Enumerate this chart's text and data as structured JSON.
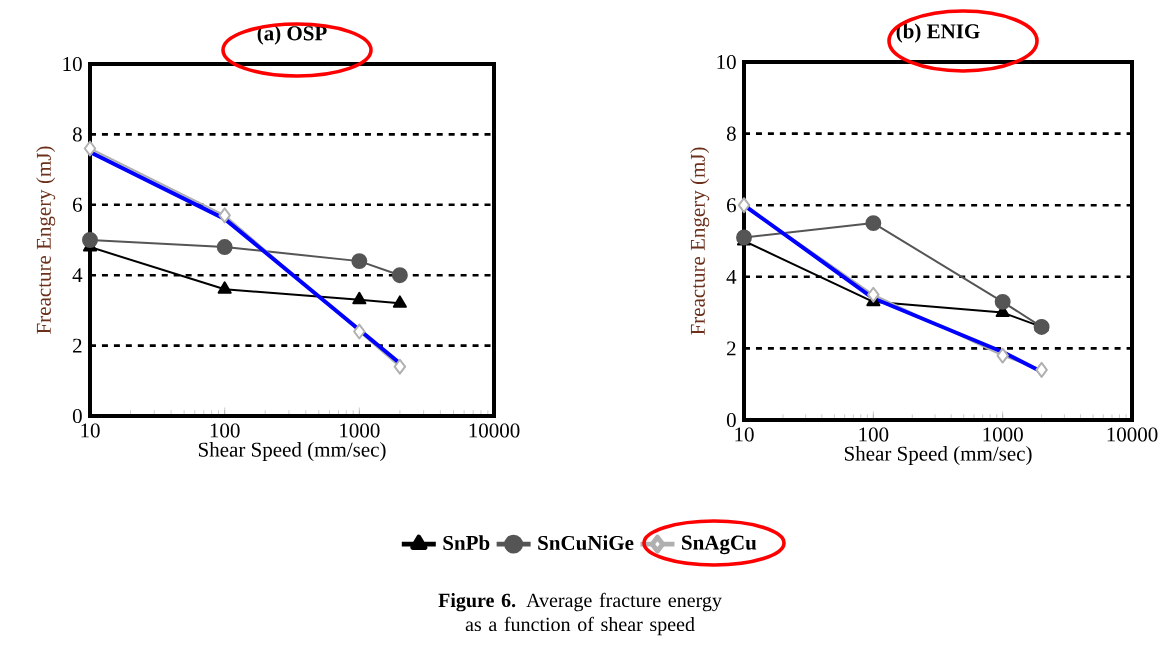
{
  "chart_data": [
    {
      "type": "line",
      "title": "(a) OSP",
      "xlabel": "Shear Speed (mm/sec)",
      "ylabel": "Freacture Engery (mJ)",
      "log": "x",
      "xlim": [
        10,
        10000
      ],
      "xticks": [
        10,
        100,
        1000,
        10000
      ],
      "ylim": [
        0,
        10
      ],
      "yticks": [
        0,
        2,
        4,
        6,
        8,
        10
      ],
      "grid": "y",
      "legend": "bottom",
      "x": [
        10,
        100,
        1000,
        2000
      ],
      "series": [
        {
          "name": "SnPb",
          "color": "#000000",
          "marker": "triangle",
          "values": [
            4.8,
            3.6,
            3.3,
            3.2
          ]
        },
        {
          "name": "SnCuNiGe",
          "color": "#555555",
          "marker": "circle",
          "values": [
            5.0,
            4.8,
            4.4,
            4.0
          ]
        },
        {
          "name": "SnAgCu",
          "color": "#b0b0b0",
          "marker": "diamond",
          "values": [
            7.6,
            5.7,
            2.4,
            1.4
          ]
        },
        {
          "type": "line",
          "color": "#0000ff",
          "marker": "none",
          "x": [
            10,
            100,
            2000
          ],
          "values": [
            7.5,
            5.6,
            1.5
          ]
        }
      ],
      "annotations": [
        "**Figure 6.** Average fracture energy as a function of shear speed"
      ]
    },
    {
      "type": "line",
      "title": "(b) ENIG",
      "xlabel": "Shear Speed (mm/sec)",
      "ylabel": "Freacture Engery (mJ)",
      "log": "x",
      "xlim": [
        10,
        10000
      ],
      "xticks": [
        10,
        100,
        1000,
        10000
      ],
      "ylim": [
        0,
        10
      ],
      "yticks": [
        0,
        2,
        4,
        6,
        8,
        10
      ],
      "grid": "y",
      "x": [
        10,
        100,
        1000,
        2000
      ],
      "series": [
        {
          "color": "#000000",
          "marker": "triangle",
          "values": [
            5.0,
            3.3,
            3.0,
            2.6
          ]
        },
        {
          "color": "#555555",
          "marker": "circle",
          "values": [
            5.1,
            5.5,
            3.3,
            2.6
          ]
        },
        {
          "color": "#b0b0b0",
          "marker": "diamond",
          "values": [
            6.0,
            3.5,
            1.8,
            1.4
          ]
        },
        {
          "type": "line",
          "color": "#0000ff",
          "marker": "none",
          "x": [
            10,
            100,
            1000,
            2000
          ],
          "values": [
            6.0,
            3.4,
            1.9,
            1.35
          ]
        }
      ]
    }
  ]
}
